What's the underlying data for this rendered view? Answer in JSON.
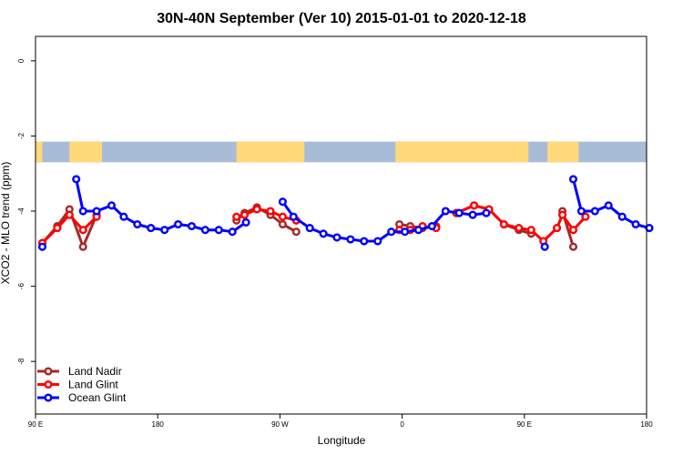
{
  "chart_data": {
    "type": "line",
    "title": "30N-40N September (Ver 10)   2015-01-01 to 2020-12-18",
    "xlabel": "Longitude",
    "ylabel": "XCO2 - MLO trend (ppm)",
    "xlim": [
      90,
      540
    ],
    "ylim": [
      -9.4,
      0.65
    ],
    "x_ticks": [
      {
        "value": 90,
        "label": "90 E"
      },
      {
        "value": 180,
        "label": "180"
      },
      {
        "value": 270,
        "label": "90 W"
      },
      {
        "value": 360,
        "label": "0"
      },
      {
        "value": 450,
        "label": "90 E"
      },
      {
        "value": 540,
        "label": "180"
      }
    ],
    "y_ticks": [
      {
        "value": 0,
        "label": "0"
      },
      {
        "value": -2,
        "label": "-2"
      },
      {
        "value": -4,
        "label": "-4"
      },
      {
        "value": -6,
        "label": "-6"
      },
      {
        "value": -8,
        "label": "-8"
      }
    ],
    "grid": false,
    "legend_position": "bottom-left",
    "background_map_band": {
      "y_range": [
        -2.7,
        -2.15
      ],
      "ocean_color": "#a8bcd8",
      "land_color": "#ffd97a",
      "land_spans": [
        [
          90,
          95
        ],
        [
          115,
          139
        ],
        [
          238,
          288
        ],
        [
          355,
          453
        ],
        [
          467,
          490
        ]
      ]
    },
    "series": [
      {
        "name": "Land Nadir",
        "color": "#a52a2a",
        "segments": [
          [
            [
              95,
              -4.85
            ],
            [
              106,
              -4.4
            ],
            [
              115,
              -3.95
            ],
            [
              125,
              -4.95
            ],
            [
              135,
              -4.1
            ]
          ],
          [
            [
              238,
              -4.25
            ],
            [
              244,
              -4.05
            ],
            [
              253,
              -3.9
            ],
            [
              263,
              -4.1
            ],
            [
              272,
              -4.35
            ],
            [
              282,
              -4.55
            ]
          ],
          [
            [
              358,
              -4.35
            ],
            [
              366,
              -4.4
            ],
            [
              375,
              -4.45
            ],
            [
              385,
              -4.4
            ]
          ],
          [
            [
              400,
              -4.05
            ],
            [
              413,
              -3.85
            ],
            [
              424,
              -3.95
            ],
            [
              435,
              -4.35
            ],
            [
              446,
              -4.5
            ],
            [
              455,
              -4.6
            ]
          ],
          [
            [
              478,
              -4.0
            ],
            [
              486,
              -4.95
            ]
          ]
        ]
      },
      {
        "name": "Land Glint",
        "color": "#ff0000",
        "segments": [
          [
            [
              95,
              -4.85
            ],
            [
              106,
              -4.45
            ],
            [
              115,
              -4.1
            ],
            [
              125,
              -4.5
            ],
            [
              135,
              -4.15
            ]
          ],
          [
            [
              238,
              -4.15
            ],
            [
              244,
              -4.1
            ],
            [
              253,
              -3.95
            ],
            [
              263,
              -4.0
            ],
            [
              272,
              -4.15
            ],
            [
              282,
              -4.25
            ]
          ],
          [
            [
              358,
              -4.5
            ],
            [
              366,
              -4.5
            ],
            [
              375,
              -4.4
            ],
            [
              385,
              -4.45
            ]
          ],
          [
            [
              400,
              -4.05
            ],
            [
              413,
              -3.85
            ],
            [
              424,
              -3.95
            ],
            [
              435,
              -4.35
            ],
            [
              446,
              -4.45
            ],
            [
              455,
              -4.5
            ],
            [
              464,
              -4.8
            ],
            [
              474,
              -4.45
            ],
            [
              478,
              -4.1
            ],
            [
              486,
              -4.5
            ],
            [
              495,
              -4.15
            ]
          ]
        ]
      },
      {
        "name": "Ocean Glint",
        "color": "#0000ff",
        "segments": [
          [
            [
              95,
              -4.95
            ]
          ],
          [
            [
              120,
              -3.15
            ],
            [
              125,
              -4.0
            ],
            [
              135,
              -4.0
            ],
            [
              146,
              -3.85
            ],
            [
              155,
              -4.15
            ],
            [
              165,
              -4.35
            ],
            [
              175,
              -4.45
            ],
            [
              185,
              -4.5
            ],
            [
              195,
              -4.35
            ],
            [
              205,
              -4.4
            ],
            [
              215,
              -4.5
            ],
            [
              225,
              -4.5
            ],
            [
              235,
              -4.55
            ],
            [
              245,
              -4.3
            ]
          ],
          [
            [
              272,
              -3.75
            ],
            [
              280,
              -4.15
            ],
            [
              292,
              -4.45
            ],
            [
              302,
              -4.6
            ],
            [
              312,
              -4.7
            ],
            [
              322,
              -4.75
            ],
            [
              332,
              -4.8
            ],
            [
              342,
              -4.8
            ],
            [
              352,
              -4.55
            ],
            [
              362,
              -4.55
            ],
            [
              372,
              -4.5
            ],
            [
              382,
              -4.4
            ],
            [
              392,
              -4.0
            ],
            [
              402,
              -4.05
            ],
            [
              412,
              -4.1
            ],
            [
              422,
              -4.05
            ]
          ],
          [
            [
              465,
              -4.95
            ]
          ],
          [
            [
              486,
              -3.15
            ],
            [
              492,
              -4.0
            ],
            [
              502,
              -4.0
            ],
            [
              512,
              -3.85
            ],
            [
              522,
              -4.15
            ],
            [
              532,
              -4.35
            ],
            [
              542,
              -4.45
            ]
          ]
        ]
      }
    ]
  }
}
